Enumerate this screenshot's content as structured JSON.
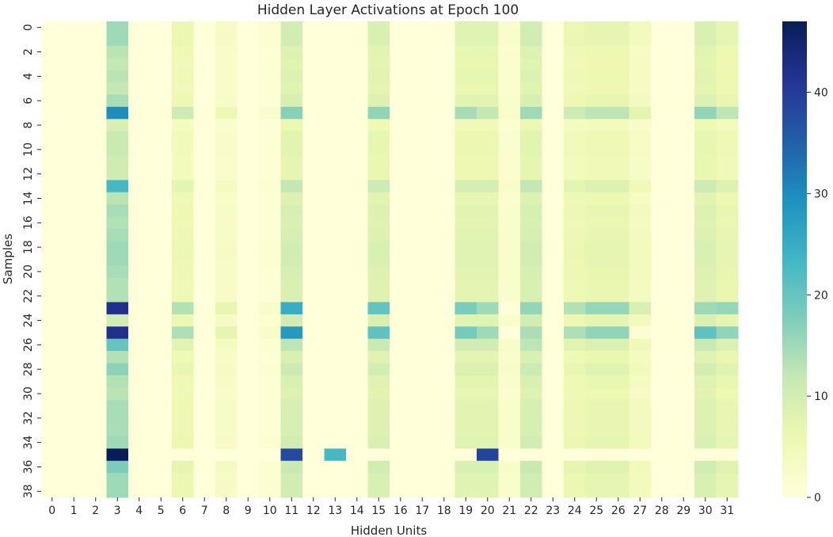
{
  "chart_data": {
    "type": "heatmap",
    "title": "Hidden Layer Activations at Epoch 100",
    "xlabel": "Hidden Units",
    "ylabel": "Samples",
    "x_ticks": [
      "0",
      "1",
      "2",
      "3",
      "4",
      "5",
      "6",
      "7",
      "8",
      "9",
      "10",
      "11",
      "12",
      "13",
      "14",
      "15",
      "16",
      "17",
      "18",
      "19",
      "20",
      "21",
      "22",
      "23",
      "24",
      "25",
      "26",
      "27",
      "28",
      "29",
      "30",
      "31"
    ],
    "y_ticks": [
      "0",
      "2",
      "4",
      "6",
      "8",
      "10",
      "12",
      "14",
      "16",
      "18",
      "20",
      "22",
      "24",
      "26",
      "28",
      "30",
      "32",
      "34",
      "36",
      "38"
    ],
    "n_rows": 39,
    "n_cols": 32,
    "colorbar": {
      "min": 0,
      "max": 47,
      "ticks": [
        0,
        10,
        20,
        30,
        40
      ]
    },
    "colormap": "YlGnBu",
    "column_base": [
      0,
      0,
      0,
      15,
      0,
      0,
      6,
      0,
      3,
      0,
      1,
      10,
      0,
      0,
      0,
      9,
      0,
      0,
      0,
      8,
      8,
      2,
      10,
      0,
      6,
      7,
      7,
      4,
      0,
      0,
      9,
      7
    ],
    "row_scale": [
      1.0,
      1.0,
      0.85,
      0.8,
      0.85,
      0.8,
      0.95,
      1.8,
      0.6,
      0.75,
      0.75,
      0.7,
      0.7,
      1.2,
      0.85,
      0.95,
      0.9,
      0.95,
      1.0,
      1.0,
      0.95,
      0.9,
      0.9,
      2.25,
      1.0,
      2.3,
      1.25,
      0.9,
      1.1,
      0.9,
      0.85,
      0.95,
      0.95,
      0.95,
      1.0,
      2.9,
      1.15,
      1.0,
      1.0
    ],
    "overrides": [
      {
        "row": 7,
        "col": 3,
        "value": 30
      },
      {
        "row": 7,
        "col": 11,
        "value": 17
      },
      {
        "row": 7,
        "col": 22,
        "value": 15
      },
      {
        "row": 7,
        "col": 20,
        "value": 12
      },
      {
        "row": 7,
        "col": 21,
        "value": 2
      },
      {
        "row": 13,
        "col": 3,
        "value": 23
      },
      {
        "row": 23,
        "col": 3,
        "value": 42
      },
      {
        "row": 23,
        "col": 11,
        "value": 25
      },
      {
        "row": 23,
        "col": 20,
        "value": 15
      },
      {
        "row": 23,
        "col": 22,
        "value": 16
      },
      {
        "row": 23,
        "col": 30,
        "value": 15
      },
      {
        "row": 23,
        "col": 21,
        "value": 0
      },
      {
        "row": 24,
        "col": 3,
        "value": 10
      },
      {
        "row": 25,
        "col": 3,
        "value": 42
      },
      {
        "row": 25,
        "col": 11,
        "value": 28
      },
      {
        "row": 25,
        "col": 20,
        "value": 15
      },
      {
        "row": 25,
        "col": 22,
        "value": 14
      },
      {
        "row": 25,
        "col": 27,
        "value": 1
      },
      {
        "row": 25,
        "col": 21,
        "value": 0
      },
      {
        "row": 26,
        "col": 3,
        "value": 20
      },
      {
        "row": 35,
        "col": 3,
        "value": 47
      },
      {
        "row": 35,
        "col": 11,
        "value": 38
      },
      {
        "row": 35,
        "col": 13,
        "value": 23
      },
      {
        "row": 35,
        "col": 20,
        "value": 39
      },
      {
        "row": 36,
        "col": 3,
        "value": 18
      }
    ],
    "zero_row_cols": {
      "row": 35,
      "except": [
        3,
        11,
        13,
        20
      ]
    }
  }
}
